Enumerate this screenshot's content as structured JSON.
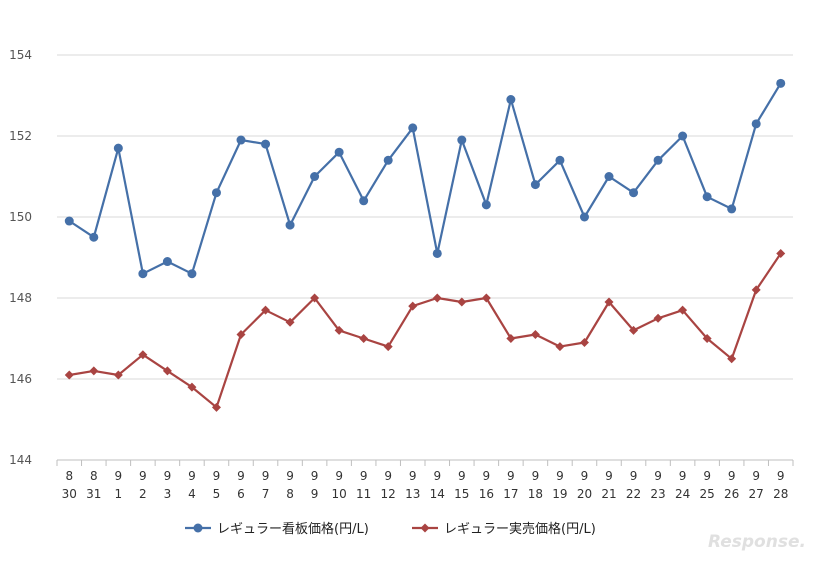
{
  "chart_data": {
    "type": "line",
    "title": "",
    "xlabel": "",
    "ylabel": "",
    "ylim": [
      144,
      154
    ],
    "yticks": [
      "144",
      "146",
      "148",
      "150",
      "152",
      "154"
    ],
    "grid": "horizontal",
    "legend_position": "bottom",
    "categories": [
      {
        "month": "8",
        "day": "30"
      },
      {
        "month": "8",
        "day": "31"
      },
      {
        "month": "9",
        "day": "1"
      },
      {
        "month": "9",
        "day": "2"
      },
      {
        "month": "9",
        "day": "3"
      },
      {
        "month": "9",
        "day": "4"
      },
      {
        "month": "9",
        "day": "5"
      },
      {
        "month": "9",
        "day": "6"
      },
      {
        "month": "9",
        "day": "7"
      },
      {
        "month": "9",
        "day": "8"
      },
      {
        "month": "9",
        "day": "9"
      },
      {
        "month": "9",
        "day": "10"
      },
      {
        "month": "9",
        "day": "11"
      },
      {
        "month": "9",
        "day": "12"
      },
      {
        "month": "9",
        "day": "13"
      },
      {
        "month": "9",
        "day": "14"
      },
      {
        "month": "9",
        "day": "15"
      },
      {
        "month": "9",
        "day": "16"
      },
      {
        "month": "9",
        "day": "17"
      },
      {
        "month": "9",
        "day": "18"
      },
      {
        "month": "9",
        "day": "19"
      },
      {
        "month": "9",
        "day": "20"
      },
      {
        "month": "9",
        "day": "21"
      },
      {
        "month": "9",
        "day": "22"
      },
      {
        "month": "9",
        "day": "23"
      },
      {
        "month": "9",
        "day": "24"
      },
      {
        "month": "9",
        "day": "25"
      },
      {
        "month": "9",
        "day": "26"
      },
      {
        "month": "9",
        "day": "27"
      },
      {
        "month": "9",
        "day": "28"
      }
    ],
    "series": [
      {
        "name": "レギュラー看板価格(円/L)",
        "color": "#4570a8",
        "marker": "circle",
        "values": [
          149.9,
          149.5,
          151.7,
          148.6,
          148.9,
          148.6,
          150.6,
          151.9,
          151.8,
          149.8,
          151.0,
          151.6,
          150.4,
          151.4,
          152.2,
          149.1,
          151.9,
          150.3,
          152.9,
          150.8,
          151.4,
          150.0,
          151.0,
          150.6,
          151.4,
          152.0,
          150.5,
          150.2,
          152.3,
          153.3
        ]
      },
      {
        "name": "レギュラー実売価格(円/L)",
        "color": "#a94442",
        "marker": "diamond",
        "values": [
          146.1,
          146.2,
          146.1,
          146.6,
          146.2,
          145.8,
          145.3,
          147.1,
          147.7,
          147.4,
          148.0,
          147.2,
          147.0,
          146.8,
          147.8,
          148.0,
          147.9,
          148.0,
          147.0,
          147.1,
          146.8,
          146.9,
          147.9,
          147.2,
          147.5,
          147.7,
          147.0,
          146.5,
          148.2,
          149.1
        ]
      }
    ]
  },
  "watermark": "Response."
}
